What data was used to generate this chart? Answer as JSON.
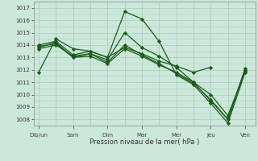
{
  "xlabel": "Pression niveau de la mer( hPa )",
  "background_color": "#cce8da",
  "grid_color": "#aaccbb",
  "line_color": "#1a5c1a",
  "ylim": [
    1007.5,
    1017.5
  ],
  "yticks": [
    1008,
    1009,
    1010,
    1011,
    1012,
    1013,
    1014,
    1015,
    1016,
    1017
  ],
  "xtick_labels": [
    "Dib/un",
    "Sam",
    "Dim",
    "Mar",
    "Mer",
    "Jeu",
    "Ven"
  ],
  "xtick_positions": [
    0,
    1,
    2,
    3,
    4,
    5,
    6
  ],
  "xlim": [
    -0.15,
    6.3
  ],
  "lines": [
    {
      "x": [
        0,
        0.5,
        1,
        1.5,
        2,
        2.5,
        3,
        3.5,
        4,
        4.5,
        5,
        5.5,
        6
      ],
      "y": [
        1011.8,
        1014.5,
        1013.7,
        1013.5,
        1013.0,
        1016.7,
        1016.1,
        1014.3,
        1011.6,
        1010.8,
        1009.3,
        1007.7,
        1011.8
      ]
    },
    {
      "x": [
        0,
        0.5,
        1,
        1.5,
        2,
        2.5,
        3,
        3.5,
        4,
        4.5,
        5,
        5.5,
        6
      ],
      "y": [
        1013.7,
        1014.0,
        1013.1,
        1013.3,
        1012.8,
        1015.0,
        1013.8,
        1013.1,
        1012.2,
        1011.0,
        1010.0,
        1008.3,
        1011.9
      ]
    },
    {
      "x": [
        0,
        0.5,
        1,
        1.5,
        2,
        2.5,
        3,
        3.5,
        4,
        4.5,
        5,
        5.5,
        6
      ],
      "y": [
        1013.8,
        1014.2,
        1013.0,
        1013.3,
        1012.6,
        1014.0,
        1013.2,
        1012.5,
        1011.7,
        1010.9,
        1009.6,
        1008.0,
        1012.0
      ]
    },
    {
      "x": [
        0,
        0.5,
        1,
        1.5,
        2,
        2.5,
        3,
        3.5,
        4,
        4.5,
        5,
        5.5,
        6
      ],
      "y": [
        1013.9,
        1014.1,
        1013.0,
        1013.1,
        1012.5,
        1013.7,
        1013.1,
        1012.4,
        1011.8,
        1011.0,
        1009.5,
        1008.0,
        1012.1
      ]
    },
    {
      "x": [
        0,
        0.5,
        1,
        1.5,
        2,
        2.5,
        3,
        3.5,
        4,
        4.5,
        5
      ],
      "y": [
        1014.0,
        1014.3,
        1013.2,
        1013.5,
        1013.0,
        1013.8,
        1013.3,
        1012.7,
        1012.3,
        1011.8,
        1012.2
      ]
    }
  ]
}
